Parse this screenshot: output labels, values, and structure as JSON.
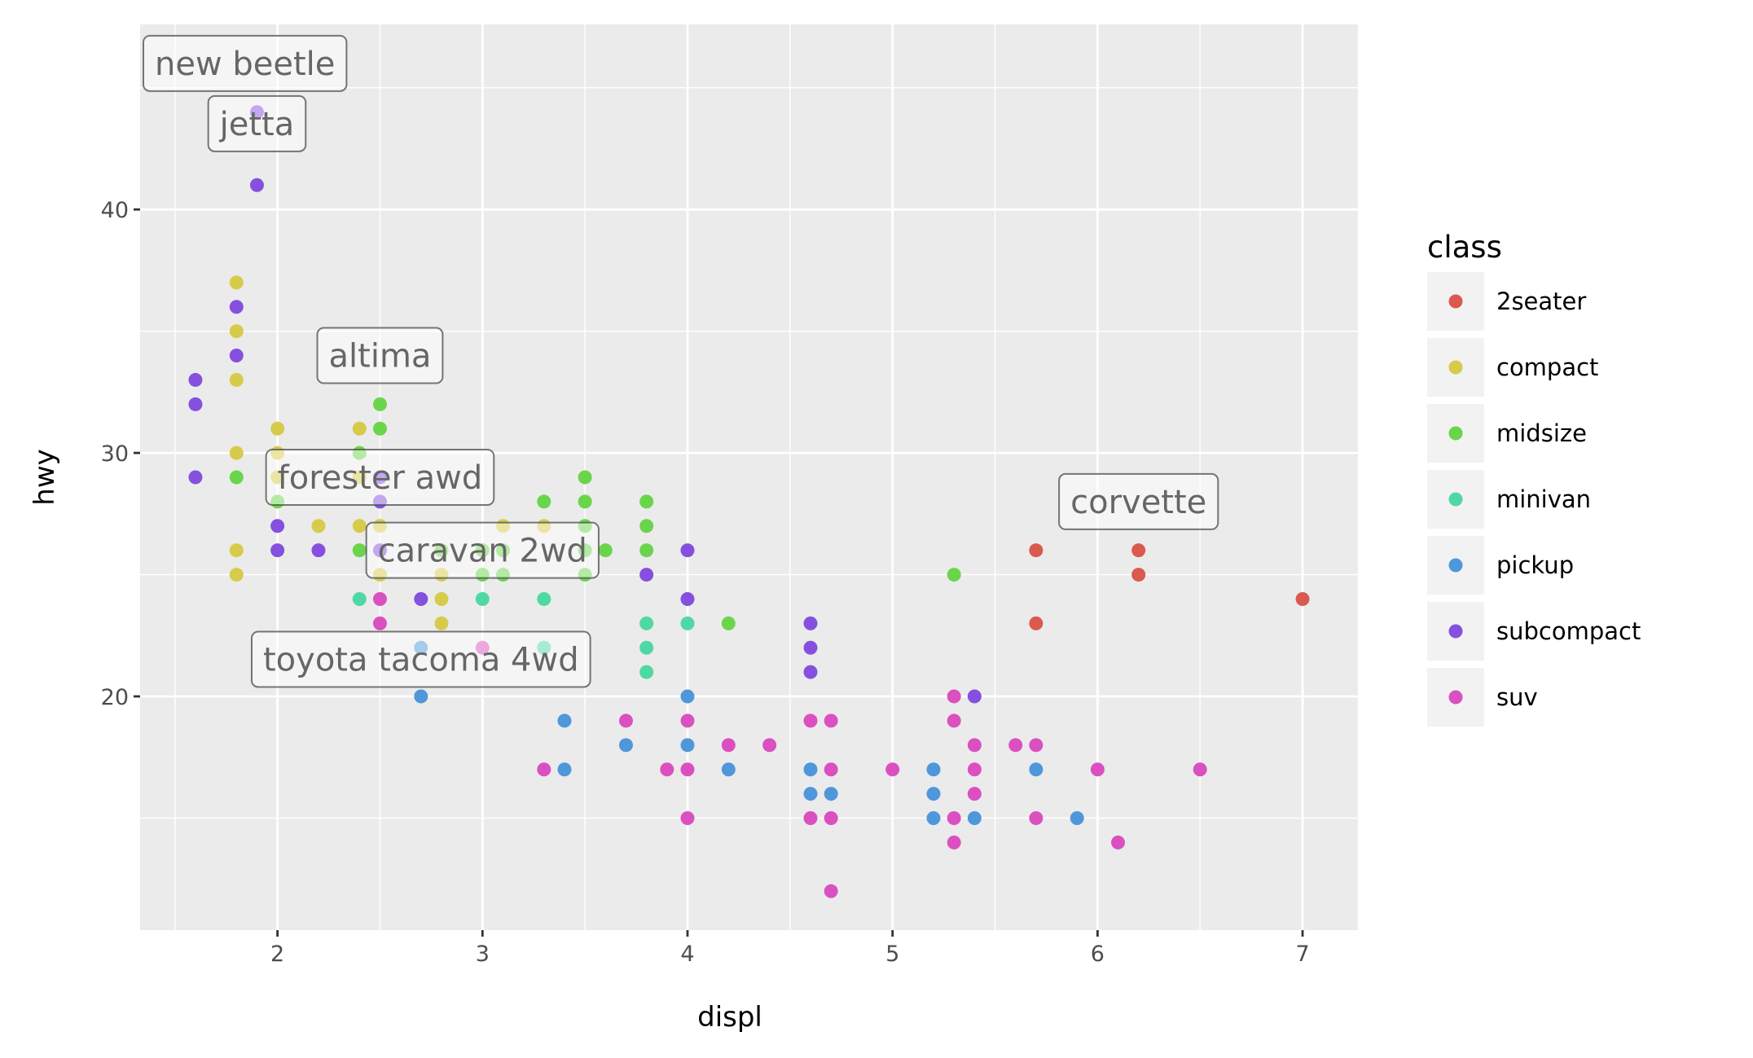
{
  "chart_data": {
    "type": "scatter",
    "xlabel": "displ",
    "ylabel": "hwy",
    "xlim": [
      1.33,
      7.27
    ],
    "ylim": [
      10.4,
      47.6
    ],
    "xticks": [
      2,
      3,
      4,
      5,
      6,
      7
    ],
    "yticks": [
      20,
      30,
      40
    ],
    "grid": true,
    "legend": {
      "title": "class",
      "placement": "right",
      "entries": [
        {
          "name": "2seater",
          "color": "#DA5A4F"
        },
        {
          "name": "compact",
          "color": "#D6CB4A"
        },
        {
          "name": "midsize",
          "color": "#6AD54B"
        },
        {
          "name": "minivan",
          "color": "#4FD8A4"
        },
        {
          "name": "pickup",
          "color": "#4F97DB"
        },
        {
          "name": "subcompact",
          "color": "#8550DE"
        },
        {
          "name": "suv",
          "color": "#DB50C0"
        }
      ]
    },
    "series": [
      {
        "name": "2seater",
        "points": [
          [
            5.7,
            26
          ],
          [
            5.7,
            23
          ],
          [
            6.2,
            26
          ],
          [
            6.2,
            25
          ],
          [
            7.0,
            24
          ]
        ]
      },
      {
        "name": "compact",
        "points": [
          [
            1.8,
            37
          ],
          [
            1.8,
            35
          ],
          [
            1.8,
            33
          ],
          [
            1.8,
            30
          ],
          [
            1.8,
            26
          ],
          [
            1.8,
            25
          ],
          [
            2.0,
            31
          ],
          [
            2.0,
            30
          ],
          [
            2.0,
            29
          ],
          [
            2.2,
            27
          ],
          [
            2.4,
            31
          ],
          [
            2.4,
            29
          ],
          [
            2.4,
            27
          ],
          [
            2.5,
            27
          ],
          [
            2.5,
            25
          ],
          [
            2.8,
            26
          ],
          [
            2.8,
            25
          ],
          [
            2.8,
            24
          ],
          [
            2.8,
            23
          ],
          [
            3.0,
            26
          ],
          [
            3.1,
            27
          ],
          [
            3.3,
            27
          ]
        ]
      },
      {
        "name": "midsize",
        "points": [
          [
            1.8,
            29
          ],
          [
            2.0,
            28
          ],
          [
            2.4,
            30
          ],
          [
            2.4,
            26
          ],
          [
            2.5,
            32
          ],
          [
            2.5,
            31
          ],
          [
            2.8,
            26
          ],
          [
            3.0,
            26
          ],
          [
            3.0,
            25
          ],
          [
            3.1,
            26
          ],
          [
            3.1,
            25
          ],
          [
            3.3,
            28
          ],
          [
            3.5,
            29
          ],
          [
            3.5,
            28
          ],
          [
            3.5,
            27
          ],
          [
            3.5,
            26
          ],
          [
            3.5,
            25
          ],
          [
            3.6,
            26
          ],
          [
            3.8,
            28
          ],
          [
            3.8,
            27
          ],
          [
            3.8,
            26
          ],
          [
            4.2,
            23
          ],
          [
            5.3,
            25
          ]
        ]
      },
      {
        "name": "minivan",
        "points": [
          [
            2.4,
            24
          ],
          [
            3.0,
            24
          ],
          [
            3.3,
            24
          ],
          [
            3.3,
            22
          ],
          [
            3.8,
            23
          ],
          [
            3.8,
            22
          ],
          [
            3.8,
            21
          ],
          [
            4.0,
            23
          ]
        ]
      },
      {
        "name": "pickup",
        "points": [
          [
            2.7,
            22
          ],
          [
            2.7,
            20
          ],
          [
            3.4,
            19
          ],
          [
            3.4,
            17
          ],
          [
            3.7,
            18
          ],
          [
            4.0,
            20
          ],
          [
            4.0,
            18
          ],
          [
            4.2,
            17
          ],
          [
            4.6,
            17
          ],
          [
            4.6,
            16
          ],
          [
            4.7,
            16
          ],
          [
            5.2,
            17
          ],
          [
            5.2,
            16
          ],
          [
            5.2,
            15
          ],
          [
            5.4,
            15
          ],
          [
            5.7,
            17
          ],
          [
            5.9,
            15
          ]
        ]
      },
      {
        "name": "subcompact",
        "points": [
          [
            1.6,
            33
          ],
          [
            1.6,
            32
          ],
          [
            1.6,
            29
          ],
          [
            1.8,
            36
          ],
          [
            1.8,
            34
          ],
          [
            1.9,
            44
          ],
          [
            1.9,
            41
          ],
          [
            2.0,
            27
          ],
          [
            2.0,
            26
          ],
          [
            2.2,
            26
          ],
          [
            2.5,
            29
          ],
          [
            2.5,
            28
          ],
          [
            2.5,
            26
          ],
          [
            2.7,
            24
          ],
          [
            3.8,
            25
          ],
          [
            4.0,
            26
          ],
          [
            4.0,
            24
          ],
          [
            4.6,
            23
          ],
          [
            4.6,
            22
          ],
          [
            4.6,
            21
          ],
          [
            5.4,
            20
          ]
        ]
      },
      {
        "name": "suv",
        "points": [
          [
            2.5,
            24
          ],
          [
            2.5,
            23
          ],
          [
            3.0,
            22
          ],
          [
            3.3,
            17
          ],
          [
            3.7,
            19
          ],
          [
            3.9,
            17
          ],
          [
            4.0,
            19
          ],
          [
            4.0,
            17
          ],
          [
            4.0,
            15
          ],
          [
            4.2,
            18
          ],
          [
            4.4,
            18
          ],
          [
            4.6,
            19
          ],
          [
            4.6,
            15
          ],
          [
            4.7,
            19
          ],
          [
            4.7,
            17
          ],
          [
            4.7,
            15
          ],
          [
            4.7,
            12
          ],
          [
            5.0,
            17
          ],
          [
            5.3,
            20
          ],
          [
            5.3,
            19
          ],
          [
            5.3,
            15
          ],
          [
            5.3,
            14
          ],
          [
            5.4,
            18
          ],
          [
            5.4,
            17
          ],
          [
            5.4,
            16
          ],
          [
            5.6,
            18
          ],
          [
            5.7,
            18
          ],
          [
            5.7,
            15
          ],
          [
            6.0,
            17
          ],
          [
            6.1,
            14
          ],
          [
            6.5,
            17
          ]
        ]
      }
    ],
    "annotations": [
      {
        "text": "new beetle",
        "x": 1.74,
        "y": 46
      },
      {
        "text": "jetta",
        "x": 1.9,
        "y": 46
      },
      {
        "text": "altima",
        "x": 2.5,
        "y": 34
      },
      {
        "text": "forester awd",
        "x": 2.5,
        "y": 29
      },
      {
        "text": "caravan 2wd",
        "x": 3.0,
        "y": 26
      },
      {
        "text": "toyota tacoma 4wd",
        "x": 2.7,
        "y": 24
      },
      {
        "text": "corvette",
        "x": 6.2,
        "y": 28
      }
    ]
  }
}
